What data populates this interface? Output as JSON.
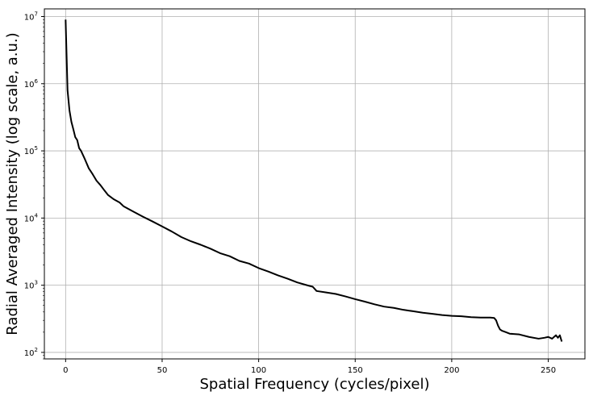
{
  "chart_data": {
    "type": "line",
    "title": "",
    "xlabel": "Spatial Frequency (cycles/pixel)",
    "ylabel": "Radial Averaged Intensity (log scale, a.u.)",
    "yscale": "log",
    "grid": true,
    "legend": "none",
    "xlim": [
      -11,
      269
    ],
    "ylim": [
      80,
      13000000
    ],
    "x_ticks": [
      0,
      50,
      100,
      150,
      200,
      250
    ],
    "y_ticks": [
      {
        "value": 100,
        "base": "10",
        "exp": "2"
      },
      {
        "value": 1000,
        "base": "10",
        "exp": "3"
      },
      {
        "value": 10000,
        "base": "10",
        "exp": "4"
      },
      {
        "value": 100000,
        "base": "10",
        "exp": "5"
      },
      {
        "value": 1000000,
        "base": "10",
        "exp": "6"
      },
      {
        "value": 10000000,
        "base": "10",
        "exp": "7"
      }
    ],
    "series": [
      {
        "color": "#000000",
        "x": [
          0,
          1,
          2,
          3,
          4,
          5,
          6,
          7,
          8,
          10,
          12,
          14,
          16,
          18,
          20,
          22,
          25,
          28,
          30,
          35,
          40,
          45,
          50,
          55,
          60,
          65,
          70,
          75,
          80,
          85,
          90,
          95,
          100,
          105,
          110,
          115,
          120,
          125,
          128,
          130,
          135,
          140,
          145,
          150,
          155,
          160,
          165,
          170,
          175,
          180,
          185,
          190,
          195,
          200,
          205,
          210,
          215,
          220,
          222,
          223,
          224,
          225,
          226,
          228,
          230,
          235,
          240,
          245,
          248,
          250,
          252,
          253,
          254,
          255,
          256,
          257
        ],
        "y": [
          9000000,
          800000,
          400000,
          270000,
          210000,
          160000,
          145000,
          110000,
          100000,
          75000,
          55000,
          45000,
          36000,
          31000,
          26000,
          22000,
          19000,
          17000,
          15000,
          12500,
          10500,
          8900,
          7500,
          6300,
          5200,
          4500,
          4000,
          3500,
          3000,
          2700,
          2300,
          2100,
          1800,
          1600,
          1400,
          1250,
          1100,
          1000,
          950,
          820,
          780,
          740,
          680,
          620,
          570,
          520,
          480,
          460,
          430,
          410,
          390,
          375,
          360,
          350,
          345,
          335,
          330,
          330,
          325,
          300,
          250,
          220,
          210,
          200,
          190,
          185,
          170,
          160,
          165,
          170,
          160,
          170,
          180,
          165,
          180,
          145
        ]
      }
    ]
  }
}
